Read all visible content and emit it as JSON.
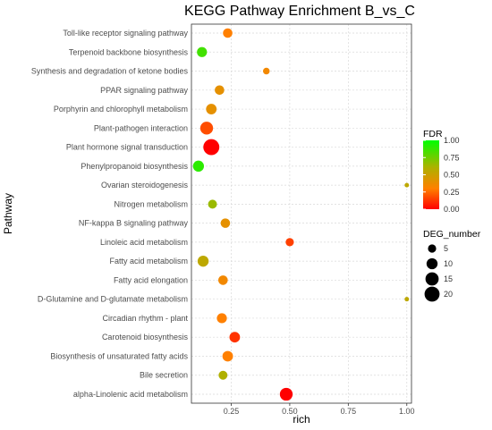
{
  "chart_data": {
    "type": "scatter",
    "title": "KEGG Pathway Enrichment  B_vs_C",
    "xlabel": "rich",
    "ylabel": "Pathway",
    "xlim": [
      0.08,
      1.02
    ],
    "xticks": [
      0.25,
      0.5,
      0.75,
      1.0
    ],
    "xtick_labels": [
      "0.25",
      "0.50",
      "0.75",
      "1.00"
    ],
    "grid": true,
    "categories": [
      "Toll-like receptor signaling pathway",
      "Terpenoid backbone biosynthesis",
      "Synthesis and degradation of ketone bodies",
      "PPAR signaling pathway",
      "Porphyrin and chlorophyll metabolism",
      "Plant-pathogen interaction",
      "Plant hormone signal transduction",
      "Phenylpropanoid biosynthesis",
      "Ovarian steroidogenesis",
      "Nitrogen metabolism",
      "NF-kappa B signaling pathway",
      "Linoleic acid metabolism",
      "Fatty acid metabolism",
      "Fatty acid elongation",
      "D-Glutamine and D-glutamate metabolism",
      "Circadian rhythm - plant",
      "Carotenoid biosynthesis",
      "Biosynthesis of unsaturated fatty acids",
      "Bile secretion",
      "alpha-Linolenic acid metabolism"
    ],
    "points": [
      {
        "pathway": "Toll-like receptor signaling pathway",
        "rich": 0.235,
        "fdr": 0.3,
        "deg_number": 7
      },
      {
        "pathway": "Terpenoid backbone biosynthesis",
        "rich": 0.125,
        "fdr": 0.85,
        "deg_number": 8
      },
      {
        "pathway": "Synthesis and degradation of ketone bodies",
        "rich": 0.4,
        "fdr": 0.35,
        "deg_number": 3
      },
      {
        "pathway": "PPAR signaling pathway",
        "rich": 0.2,
        "fdr": 0.4,
        "deg_number": 7
      },
      {
        "pathway": "Porphyrin and chlorophyll metabolism",
        "rich": 0.165,
        "fdr": 0.4,
        "deg_number": 9
      },
      {
        "pathway": "Plant-pathogen interaction",
        "rich": 0.145,
        "fdr": 0.18,
        "deg_number": 14
      },
      {
        "pathway": "Plant hormone signal transduction",
        "rich": 0.165,
        "fdr": 0.0,
        "deg_number": 23
      },
      {
        "pathway": "Phenylpropanoid biosynthesis",
        "rich": 0.11,
        "fdr": 0.9,
        "deg_number": 10
      },
      {
        "pathway": "Ovarian steroidogenesis",
        "rich": 1.0,
        "fdr": 0.55,
        "deg_number": 1
      },
      {
        "pathway": "Nitrogen metabolism",
        "rich": 0.17,
        "fdr": 0.65,
        "deg_number": 6
      },
      {
        "pathway": "NF-kappa B signaling pathway",
        "rich": 0.225,
        "fdr": 0.4,
        "deg_number": 7
      },
      {
        "pathway": "Linoleic acid metabolism",
        "rich": 0.5,
        "fdr": 0.15,
        "deg_number": 5
      },
      {
        "pathway": "Fatty acid metabolism",
        "rich": 0.13,
        "fdr": 0.55,
        "deg_number": 10
      },
      {
        "pathway": "Fatty acid elongation",
        "rich": 0.215,
        "fdr": 0.35,
        "deg_number": 7
      },
      {
        "pathway": "D-Glutamine and D-glutamate metabolism",
        "rich": 1.0,
        "fdr": 0.55,
        "deg_number": 1
      },
      {
        "pathway": "Circadian rhythm - plant",
        "rich": 0.21,
        "fdr": 0.3,
        "deg_number": 8
      },
      {
        "pathway": "Carotenoid biosynthesis",
        "rich": 0.265,
        "fdr": 0.12,
        "deg_number": 9
      },
      {
        "pathway": "Biosynthesis of unsaturated fatty acids",
        "rich": 0.235,
        "fdr": 0.3,
        "deg_number": 9
      },
      {
        "pathway": "Bile secretion",
        "rich": 0.215,
        "fdr": 0.6,
        "deg_number": 6
      },
      {
        "pathway": "alpha-Linolenic acid metabolism",
        "rich": 0.485,
        "fdr": 0.0,
        "deg_number": 14
      }
    ],
    "color_legend": {
      "title": "FDR",
      "range": [
        0.0,
        1.0
      ],
      "ticks": [
        "1.00",
        "0.75",
        "0.50",
        "0.25",
        "0.00"
      ],
      "colors": [
        "#ff0000",
        "#ff8000",
        "#b0b000",
        "#00ff00"
      ]
    },
    "size_legend": {
      "title": "DEG_number",
      "values": [
        5,
        10,
        15,
        20
      ],
      "labels": [
        "5",
        "10",
        "15",
        "20"
      ]
    }
  }
}
